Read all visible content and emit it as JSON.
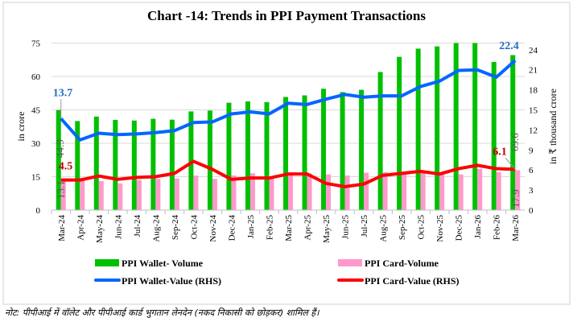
{
  "chart_data": {
    "type": "bar+line",
    "title": "Chart -14: Trends in PPI Payment Transactions",
    "ylabel": "in crore",
    "y2label": "in ₹ thousand crore",
    "ylim": [
      0,
      75
    ],
    "yticks": [
      0,
      15,
      30,
      45,
      60,
      75
    ],
    "y2lim": [
      0,
      25
    ],
    "y2ticks": [
      0,
      3,
      6,
      9,
      12,
      15,
      18,
      21,
      24
    ],
    "grid": true,
    "legend_position": "bottom",
    "categories": [
      "Mar-24",
      "Apr-24",
      "May-24",
      "Jun-24",
      "Jul-24",
      "Aug-24",
      "Sep-24",
      "Oct-24",
      "Nov-24",
      "Dec-24",
      "Jan-25",
      "Feb-25",
      "Mar-25",
      "Apr-25",
      "May-25",
      "Jun-25",
      "Jul-25",
      "Aug-25",
      "Sep-25",
      "Oct-25",
      "Nov-25",
      "Dec-25",
      "Jan-26",
      "Feb-26",
      "Mar-26"
    ],
    "series": [
      {
        "name": "PPI Wallet- Volume",
        "type": "bar",
        "axis": "left",
        "color": "#00c000",
        "values": [
          44.9,
          40.0,
          42.0,
          40.5,
          40.2,
          41.0,
          40.6,
          44.3,
          44.7,
          48.2,
          48.8,
          48.5,
          50.8,
          51.5,
          54.5,
          53.0,
          54.0,
          62.0,
          68.8,
          72.5,
          73.5,
          75.0,
          75.0,
          66.5,
          69.6
        ]
      },
      {
        "name": "PPI Card-Volume",
        "type": "bar",
        "axis": "left",
        "color": "#ff99cc",
        "values": [
          13.1,
          14.5,
          13.0,
          12.0,
          13.5,
          14.0,
          14.2,
          15.5,
          14.0,
          15.5,
          16.5,
          15.0,
          16.5,
          16.5,
          16.0,
          15.5,
          16.8,
          17.0,
          16.5,
          16.8,
          16.5,
          16.0,
          18.5,
          17.0,
          17.9
        ]
      },
      {
        "name": "PPI Wallet-Value (RHS)",
        "type": "line",
        "axis": "right",
        "color": "#0066ff",
        "values": [
          13.7,
          10.5,
          11.5,
          11.3,
          11.4,
          11.6,
          11.9,
          13.1,
          13.2,
          14.4,
          14.7,
          14.4,
          16.0,
          15.8,
          16.6,
          17.3,
          16.9,
          17.1,
          17.1,
          18.5,
          19.3,
          20.9,
          21.0,
          19.9,
          22.4
        ]
      },
      {
        "name": "PPI Card-Value (RHS)",
        "type": "line",
        "axis": "right",
        "color": "#ff0000",
        "values": [
          4.5,
          4.5,
          5.1,
          4.6,
          4.9,
          5.0,
          5.5,
          7.3,
          6.1,
          4.6,
          4.8,
          4.8,
          5.4,
          5.4,
          4.0,
          3.5,
          3.9,
          5.2,
          5.5,
          5.8,
          5.4,
          6.2,
          6.7,
          6.2,
          6.1
        ]
      }
    ],
    "data_labels": {
      "wallet_value_first": "13.7",
      "wallet_value_last": "22.4",
      "card_value_first": "4.5",
      "card_value_last": "6.1",
      "wallet_volume_first": "44.9",
      "wallet_volume_last": "69.6",
      "card_volume_first": "13.1",
      "card_volume_last": "17.9"
    }
  },
  "note": "नोट: पीपीआई में वॉलेट और पीपीआई कार्ड भुगतान लेनदेन (नकद निकासी को छोड़कर) शामिल हैं।"
}
